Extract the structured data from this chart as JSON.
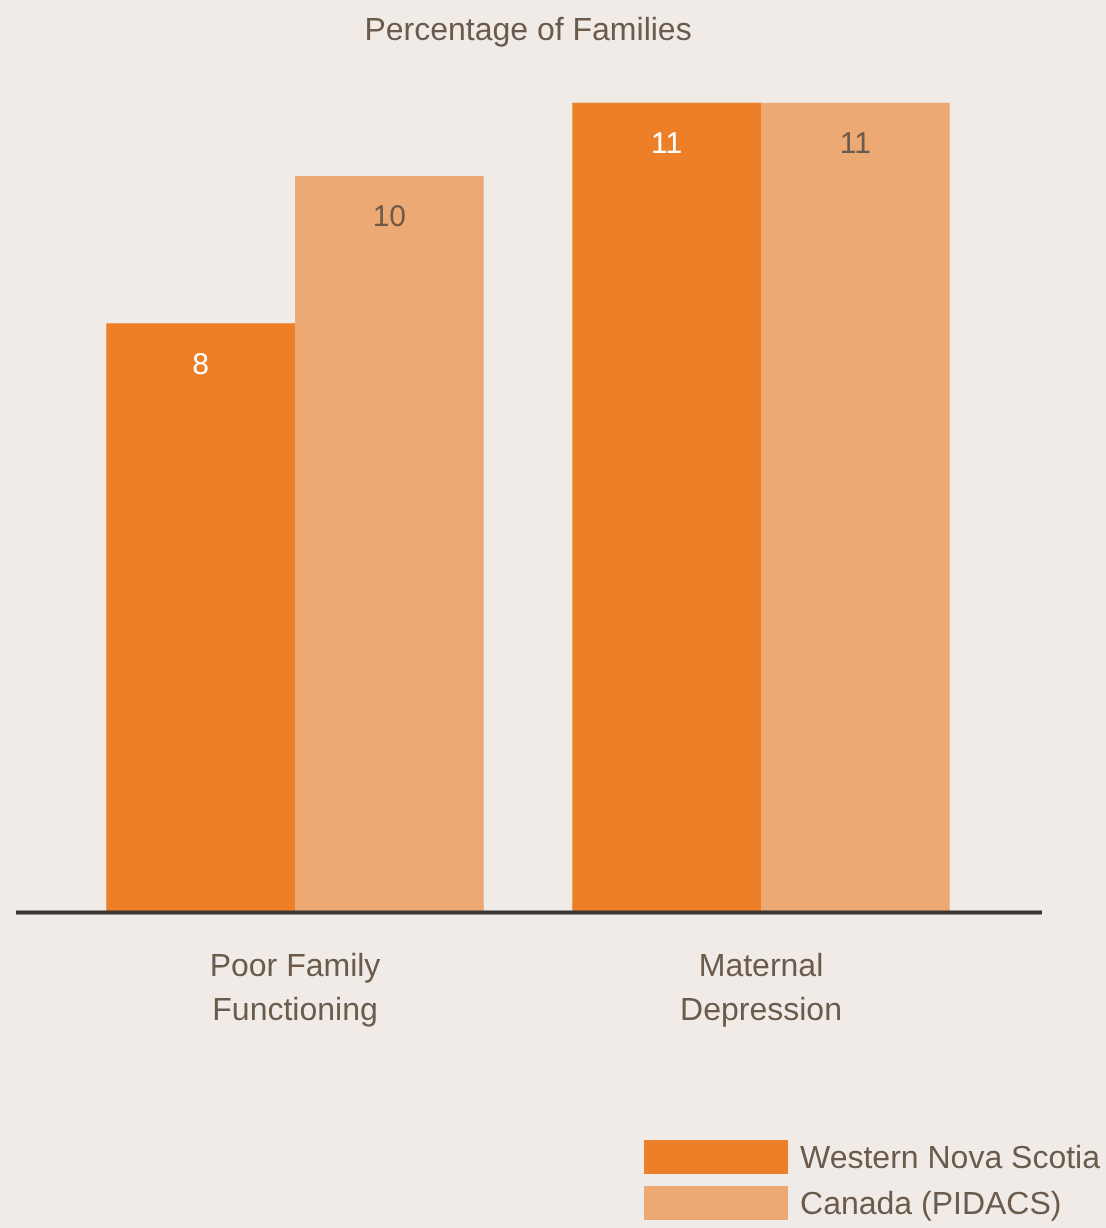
{
  "chart_data": {
    "type": "bar",
    "title": "Percentage of Families",
    "categories": [
      "Poor Family Functioning",
      "Maternal Depression"
    ],
    "series": [
      {
        "name": "Western Nova Scotia",
        "color": "#ec7f27",
        "values": [
          8,
          11
        ]
      },
      {
        "name": "Canada (PIDACS)",
        "color": "#eda973",
        "values": [
          10,
          11
        ]
      }
    ],
    "data_labels": true,
    "legend": "bottom right"
  }
}
